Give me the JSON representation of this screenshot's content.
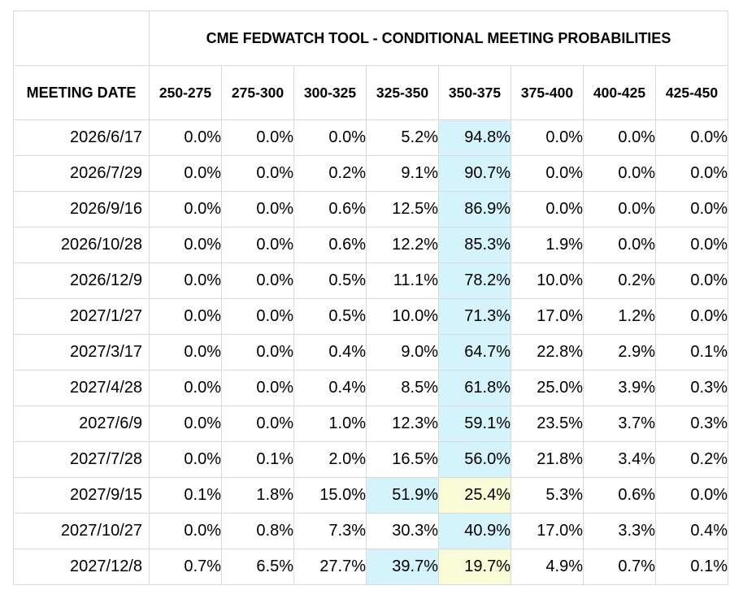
{
  "title": "CME FEDWATCH TOOL - CONDITIONAL MEETING PROBABILITIES",
  "header": {
    "meeting_date": "MEETING DATE",
    "ranges": [
      "250-275",
      "275-300",
      "300-325",
      "325-350",
      "350-375",
      "375-400",
      "400-425",
      "425-450"
    ]
  },
  "highlight_colors": {
    "blue": "#d5f3fa",
    "yellow": "#fafcd8"
  },
  "rows": [
    {
      "date": "2026/6/17",
      "values": [
        "0.0%",
        "0.0%",
        "0.0%",
        "5.2%",
        "94.8%",
        "0.0%",
        "0.0%",
        "0.0%"
      ],
      "highlight": [
        "",
        "",
        "",
        "",
        "blue",
        "",
        "",
        ""
      ]
    },
    {
      "date": "2026/7/29",
      "values": [
        "0.0%",
        "0.0%",
        "0.2%",
        "9.1%",
        "90.7%",
        "0.0%",
        "0.0%",
        "0.0%"
      ],
      "highlight": [
        "",
        "",
        "",
        "",
        "blue",
        "",
        "",
        ""
      ]
    },
    {
      "date": "2026/9/16",
      "values": [
        "0.0%",
        "0.0%",
        "0.6%",
        "12.5%",
        "86.9%",
        "0.0%",
        "0.0%",
        "0.0%"
      ],
      "highlight": [
        "",
        "",
        "",
        "",
        "blue",
        "",
        "",
        ""
      ]
    },
    {
      "date": "2026/10/28",
      "values": [
        "0.0%",
        "0.0%",
        "0.6%",
        "12.2%",
        "85.3%",
        "1.9%",
        "0.0%",
        "0.0%"
      ],
      "highlight": [
        "",
        "",
        "",
        "",
        "blue",
        "",
        "",
        ""
      ]
    },
    {
      "date": "2026/12/9",
      "values": [
        "0.0%",
        "0.0%",
        "0.5%",
        "11.1%",
        "78.2%",
        "10.0%",
        "0.2%",
        "0.0%"
      ],
      "highlight": [
        "",
        "",
        "",
        "",
        "blue",
        "",
        "",
        ""
      ]
    },
    {
      "date": "2027/1/27",
      "values": [
        "0.0%",
        "0.0%",
        "0.5%",
        "10.0%",
        "71.3%",
        "17.0%",
        "1.2%",
        "0.0%"
      ],
      "highlight": [
        "",
        "",
        "",
        "",
        "blue",
        "",
        "",
        ""
      ]
    },
    {
      "date": "2027/3/17",
      "values": [
        "0.0%",
        "0.0%",
        "0.4%",
        "9.0%",
        "64.7%",
        "22.8%",
        "2.9%",
        "0.1%"
      ],
      "highlight": [
        "",
        "",
        "",
        "",
        "blue",
        "",
        "",
        ""
      ]
    },
    {
      "date": "2027/4/28",
      "values": [
        "0.0%",
        "0.0%",
        "0.4%",
        "8.5%",
        "61.8%",
        "25.0%",
        "3.9%",
        "0.3%"
      ],
      "highlight": [
        "",
        "",
        "",
        "",
        "blue",
        "",
        "",
        ""
      ]
    },
    {
      "date": "2027/6/9",
      "values": [
        "0.0%",
        "0.0%",
        "1.0%",
        "12.3%",
        "59.1%",
        "23.5%",
        "3.7%",
        "0.3%"
      ],
      "highlight": [
        "",
        "",
        "",
        "",
        "blue",
        "",
        "",
        ""
      ]
    },
    {
      "date": "2027/7/28",
      "values": [
        "0.0%",
        "0.1%",
        "2.0%",
        "16.5%",
        "56.0%",
        "21.8%",
        "3.4%",
        "0.2%"
      ],
      "highlight": [
        "",
        "",
        "",
        "",
        "blue",
        "",
        "",
        ""
      ]
    },
    {
      "date": "2027/9/15",
      "values": [
        "0.1%",
        "1.8%",
        "15.0%",
        "51.9%",
        "25.4%",
        "5.3%",
        "0.6%",
        "0.0%"
      ],
      "highlight": [
        "",
        "",
        "",
        "blue",
        "yellow",
        "",
        "",
        ""
      ]
    },
    {
      "date": "2027/10/27",
      "values": [
        "0.0%",
        "0.8%",
        "7.3%",
        "30.3%",
        "40.9%",
        "17.0%",
        "3.3%",
        "0.4%"
      ],
      "highlight": [
        "",
        "",
        "",
        "",
        "blue",
        "",
        "",
        ""
      ]
    },
    {
      "date": "2027/12/8",
      "values": [
        "0.7%",
        "6.5%",
        "27.7%",
        "39.7%",
        "19.7%",
        "4.9%",
        "0.7%",
        "0.1%"
      ],
      "highlight": [
        "",
        "",
        "",
        "blue",
        "yellow",
        "",
        "",
        ""
      ]
    }
  ]
}
